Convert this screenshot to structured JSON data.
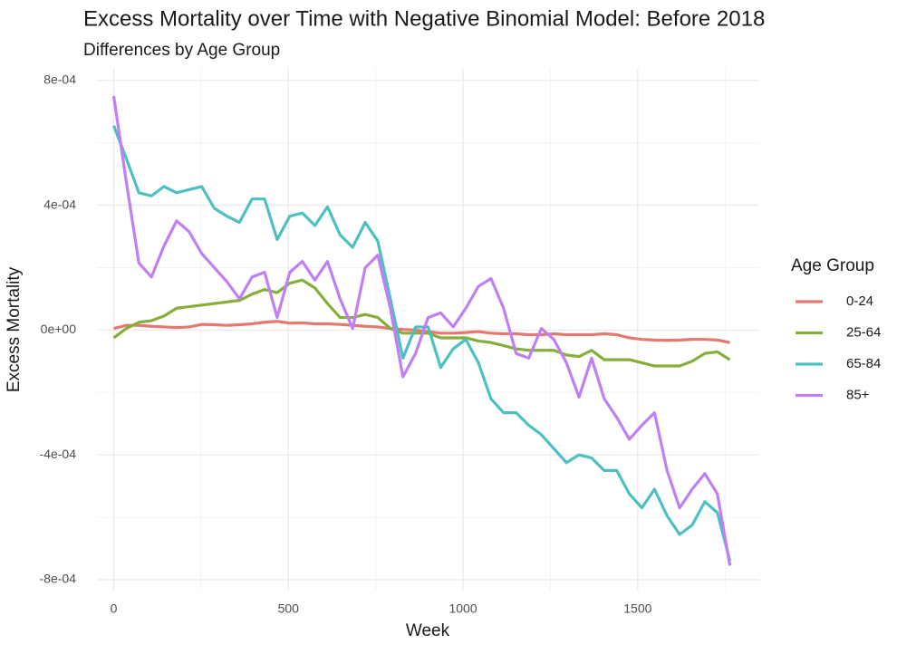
{
  "chart_data": {
    "type": "line",
    "title": "Excess Mortality over Time with Negative Binomial Model: Before 2018",
    "subtitle": "Differences by Age Group",
    "x_label": "Week",
    "y_label": "Excess Mortality",
    "legend_title": "Age Group",
    "legend": "right",
    "grid": true,
    "xlim": [
      -48,
      1848
    ],
    "ylim": [
      -0.000835,
      0.00084
    ],
    "xticks": [
      0,
      500,
      1000,
      1500
    ],
    "xminor": [
      250,
      750,
      1250,
      1750
    ],
    "yticks": [
      {
        "value": -0.0008,
        "label": "-8e-04"
      },
      {
        "value": -0.0004,
        "label": "-4e-04"
      },
      {
        "value": 0,
        "label": "0e+00"
      },
      {
        "value": 0.0004,
        "label": "4e-04"
      },
      {
        "value": 0.0008,
        "label": "8e-04"
      }
    ],
    "yminor": [
      -0.0006,
      -0.0002,
      0.0002,
      0.0006
    ],
    "x": [
      0,
      36,
      72,
      108,
      144,
      180,
      216,
      252,
      288,
      324,
      360,
      396,
      432,
      468,
      504,
      540,
      576,
      612,
      648,
      684,
      720,
      756,
      792,
      828,
      864,
      900,
      936,
      972,
      1008,
      1044,
      1080,
      1116,
      1152,
      1188,
      1224,
      1260,
      1296,
      1332,
      1368,
      1404,
      1440,
      1476,
      1512,
      1548,
      1584,
      1620,
      1656,
      1692,
      1728,
      1764
    ],
    "series": [
      {
        "name": "0-24",
        "color": "#E4796F",
        "values": [
          5e-06,
          1.5e-05,
          1.5e-05,
          1.2e-05,
          1e-05,
          8e-06,
          1e-05,
          1.8e-05,
          1.7e-05,
          1.5e-05,
          1.7e-05,
          2e-05,
          2.5e-05,
          2.8e-05,
          2.2e-05,
          2.3e-05,
          2e-05,
          2e-05,
          1.8e-05,
          1.5e-05,
          1.2e-05,
          1e-05,
          5e-06,
          2e-06,
          0,
          -5e-06,
          -1e-05,
          -1e-05,
          -8e-06,
          -5e-06,
          -1e-05,
          -1.2e-05,
          -1.2e-05,
          -1.5e-05,
          -1.5e-05,
          -1.2e-05,
          -1.5e-05,
          -1.5e-05,
          -1.5e-05,
          -1.2e-05,
          -1.5e-05,
          -2.5e-05,
          -3e-05,
          -3.2e-05,
          -3.3e-05,
          -3.2e-05,
          -3e-05,
          -3e-05,
          -3.2e-05,
          -4e-05
        ]
      },
      {
        "name": "25-64",
        "color": "#86AE3A",
        "values": [
          -2.5e-05,
          5e-06,
          2.5e-05,
          3e-05,
          4.5e-05,
          7e-05,
          7.5e-05,
          8e-05,
          8.5e-05,
          9e-05,
          9.5e-05,
          0.000115,
          0.00013,
          0.00012,
          0.00015,
          0.00016,
          0.000135,
          8.5e-05,
          4e-05,
          4e-05,
          5e-05,
          4e-05,
          5e-06,
          -1e-05,
          -1e-05,
          -1e-05,
          -2.5e-05,
          -2.5e-05,
          -2.5e-05,
          -3.5e-05,
          -4e-05,
          -5e-05,
          -6e-05,
          -6.5e-05,
          -6.5e-05,
          -6.5e-05,
          -8e-05,
          -8.5e-05,
          -6.5e-05,
          -9.5e-05,
          -9.5e-05,
          -9.5e-05,
          -0.000105,
          -0.000115,
          -0.000115,
          -0.000115,
          -0.0001,
          -7.5e-05,
          -7e-05,
          -9.5e-05
        ]
      },
      {
        "name": "65-84",
        "color": "#4EBFC2",
        "values": [
          0.000655,
          0.00055,
          0.00044,
          0.00043,
          0.00046,
          0.00044,
          0.00045,
          0.00046,
          0.00039,
          0.000365,
          0.000345,
          0.00042,
          0.00042,
          0.00029,
          0.000365,
          0.000375,
          0.000335,
          0.000395,
          0.000305,
          0.000265,
          0.000345,
          0.000285,
          0.0001,
          -9e-05,
          1e-05,
          1e-05,
          -0.00012,
          -6e-05,
          -3e-05,
          -0.000105,
          -0.00022,
          -0.000265,
          -0.000265,
          -0.000305,
          -0.000335,
          -0.00038,
          -0.000425,
          -0.0004,
          -0.00041,
          -0.00045,
          -0.00045,
          -0.000525,
          -0.00057,
          -0.00051,
          -0.000595,
          -0.000655,
          -0.000625,
          -0.00055,
          -0.000585,
          -0.00074
        ]
      },
      {
        "name": "85+",
        "color": "#C07FF5",
        "values": [
          0.00075,
          0.000475,
          0.000215,
          0.00017,
          0.00027,
          0.00035,
          0.000315,
          0.000245,
          0.0002,
          0.000155,
          0.0001,
          0.00017,
          0.000185,
          4e-05,
          0.000185,
          0.00022,
          0.00016,
          0.00022,
          0.0001,
          5e-06,
          0.0002,
          0.00024,
          7e-05,
          -0.00015,
          -7.5e-05,
          4e-05,
          5.5e-05,
          1e-05,
          7e-05,
          0.00014,
          0.000165,
          7e-05,
          -7.5e-05,
          -9e-05,
          5e-06,
          -3e-05,
          -0.000105,
          -0.000215,
          -9e-05,
          -0.00022,
          -0.00028,
          -0.00035,
          -0.000305,
          -0.000265,
          -0.00045,
          -0.00057,
          -0.00051,
          -0.00046,
          -0.000525,
          -0.000755
        ]
      }
    ]
  }
}
